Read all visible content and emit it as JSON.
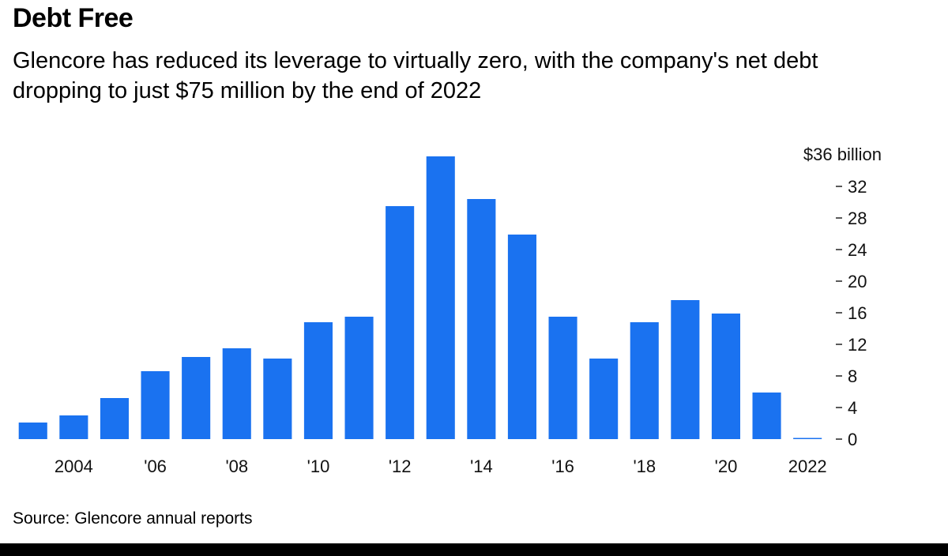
{
  "title": "Debt Free",
  "subtitle": "Glencore has reduced its leverage to virtually zero, with the company's net debt dropping to just $75 million by the end of 2022",
  "source": "Source: Glencore annual reports",
  "bar_color": "#1a72f0",
  "chart_data": {
    "type": "bar",
    "title": "Debt Free",
    "xlabel": "",
    "ylabel": "",
    "unit_label": "$36 billion",
    "ylim": [
      0,
      36
    ],
    "y_ticks": [
      0,
      4,
      8,
      12,
      16,
      20,
      24,
      28,
      32
    ],
    "y_tick_labels": [
      "0",
      "4",
      "8",
      "12",
      "16",
      "20",
      "24",
      "28",
      "32"
    ],
    "categories": [
      "2003",
      "2004",
      "2005",
      "2006",
      "2007",
      "2008",
      "2009",
      "2010",
      "2011",
      "2012",
      "2013",
      "2014",
      "2015",
      "2016",
      "2017",
      "2018",
      "2019",
      "2020",
      "2021",
      "2022"
    ],
    "values": [
      2.1,
      3.0,
      5.2,
      8.6,
      10.4,
      11.5,
      10.2,
      14.8,
      15.5,
      29.5,
      35.8,
      30.4,
      25.9,
      15.5,
      10.2,
      14.8,
      17.6,
      15.9,
      5.9,
      0.075
    ],
    "x_tick_labels": [
      {
        "category": "2004",
        "label": "2004"
      },
      {
        "category": "2006",
        "label": "'06"
      },
      {
        "category": "2008",
        "label": "'08"
      },
      {
        "category": "2010",
        "label": "'10"
      },
      {
        "category": "2012",
        "label": "'12"
      },
      {
        "category": "2014",
        "label": "'14"
      },
      {
        "category": "2016",
        "label": "'16"
      },
      {
        "category": "2018",
        "label": "'18"
      },
      {
        "category": "2020",
        "label": "'20"
      },
      {
        "category": "2022",
        "label": "2022"
      }
    ],
    "legend": "none",
    "grid": false
  }
}
